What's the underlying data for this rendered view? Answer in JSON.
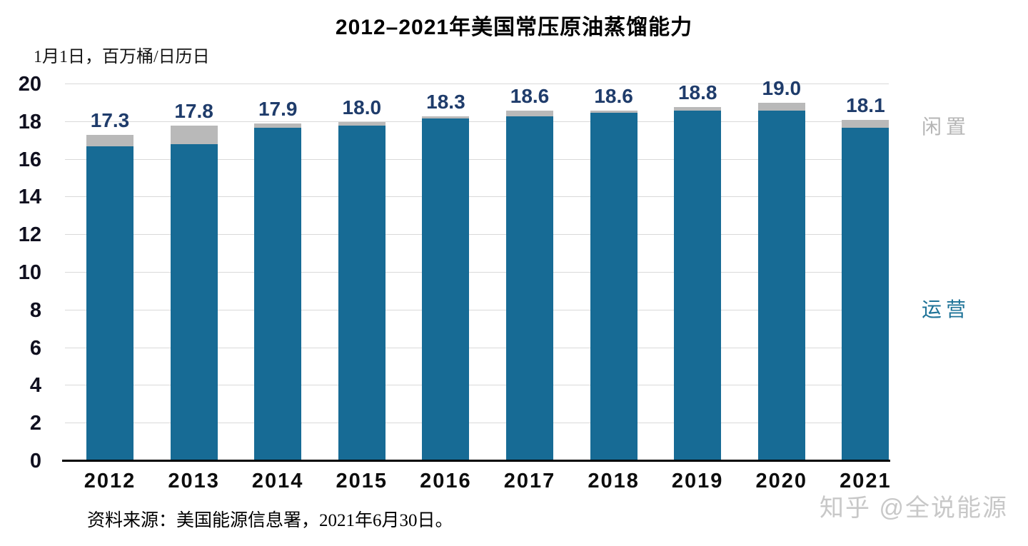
{
  "page": {
    "title": "2012–2021年美国常压原油蒸馏能力",
    "unit_note": "1月1日，百万桶/日历日",
    "source": "资料来源：美国能源信息署，2021年6月30日。",
    "watermark": "知乎 @全说能源"
  },
  "colors": {
    "operating_bar": "#176b95",
    "idle_bar": "#b9b9b9",
    "gridline": "#d9d9d9",
    "axis_line": "#000000",
    "data_label": "#1f3c6b",
    "legend_idle": "#b5b5b5",
    "legend_operating": "#1e7398",
    "watermark": "#c8c8c8"
  },
  "chart_data": {
    "type": "bar",
    "stacked": true,
    "title": "2012–2021年美国常压原油蒸馏能力",
    "unit_note": "1月1日，百万桶/日历日",
    "categories": [
      "2012",
      "2013",
      "2014",
      "2015",
      "2016",
      "2017",
      "2018",
      "2019",
      "2020",
      "2021"
    ],
    "series": [
      {
        "name": "运营",
        "color_key": "operating_bar",
        "values": [
          16.7,
          16.8,
          17.7,
          17.8,
          18.2,
          18.3,
          18.5,
          18.6,
          18.6,
          17.7
        ]
      },
      {
        "name": "闲置",
        "color_key": "idle_bar",
        "values": [
          0.6,
          1.0,
          0.2,
          0.2,
          0.1,
          0.3,
          0.1,
          0.2,
          0.4,
          0.4
        ]
      }
    ],
    "totals_labels": [
      "17.3",
      "17.8",
      "17.9",
      "18.0",
      "18.3",
      "18.6",
      "18.6",
      "18.8",
      "19.0",
      "18.1"
    ],
    "yticks": [
      0,
      2,
      4,
      6,
      8,
      10,
      12,
      14,
      16,
      18,
      20
    ],
    "ylim": [
      0,
      20
    ],
    "grid": "horizontal",
    "legend": [
      {
        "label": "闲置",
        "color_key": "legend_idle"
      },
      {
        "label": "运营",
        "color_key": "legend_operating"
      }
    ],
    "xlabel": "",
    "ylabel": ""
  }
}
